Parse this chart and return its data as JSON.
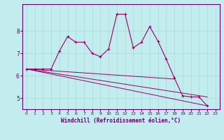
{
  "xlabel": "Windchill (Refroidissement éolien,°C)",
  "background_color": "#c2ecee",
  "line_color": "#990066",
  "grid_color": "#a8d8dc",
  "spine_color": "#660066",
  "label_color": "#660066",
  "xlim": [
    -0.5,
    23.5
  ],
  "ylim": [
    4.5,
    9.2
  ],
  "yticks": [
    5,
    6,
    7,
    8
  ],
  "xticks": [
    0,
    1,
    2,
    3,
    4,
    5,
    6,
    7,
    8,
    9,
    10,
    11,
    12,
    13,
    14,
    15,
    16,
    17,
    18,
    19,
    20,
    21,
    22,
    23
  ],
  "series1_x": [
    0,
    1,
    2,
    3,
    4,
    5,
    6,
    7,
    8,
    9,
    10,
    11,
    12,
    13,
    14,
    15,
    16,
    17,
    18,
    19,
    20,
    21,
    22
  ],
  "series1_y": [
    6.3,
    6.3,
    6.3,
    6.3,
    7.1,
    7.75,
    7.5,
    7.5,
    7.0,
    6.85,
    7.2,
    8.75,
    8.75,
    7.25,
    7.5,
    8.2,
    7.55,
    6.75,
    5.9,
    5.1,
    5.05,
    5.05,
    4.65
  ],
  "series2_x": [
    0,
    18
  ],
  "series2_y": [
    6.3,
    5.85
  ],
  "series3_x": [
    0,
    22
  ],
  "series3_y": [
    6.3,
    5.05
  ],
  "series4_x": [
    0,
    22
  ],
  "series4_y": [
    6.3,
    4.65
  ]
}
